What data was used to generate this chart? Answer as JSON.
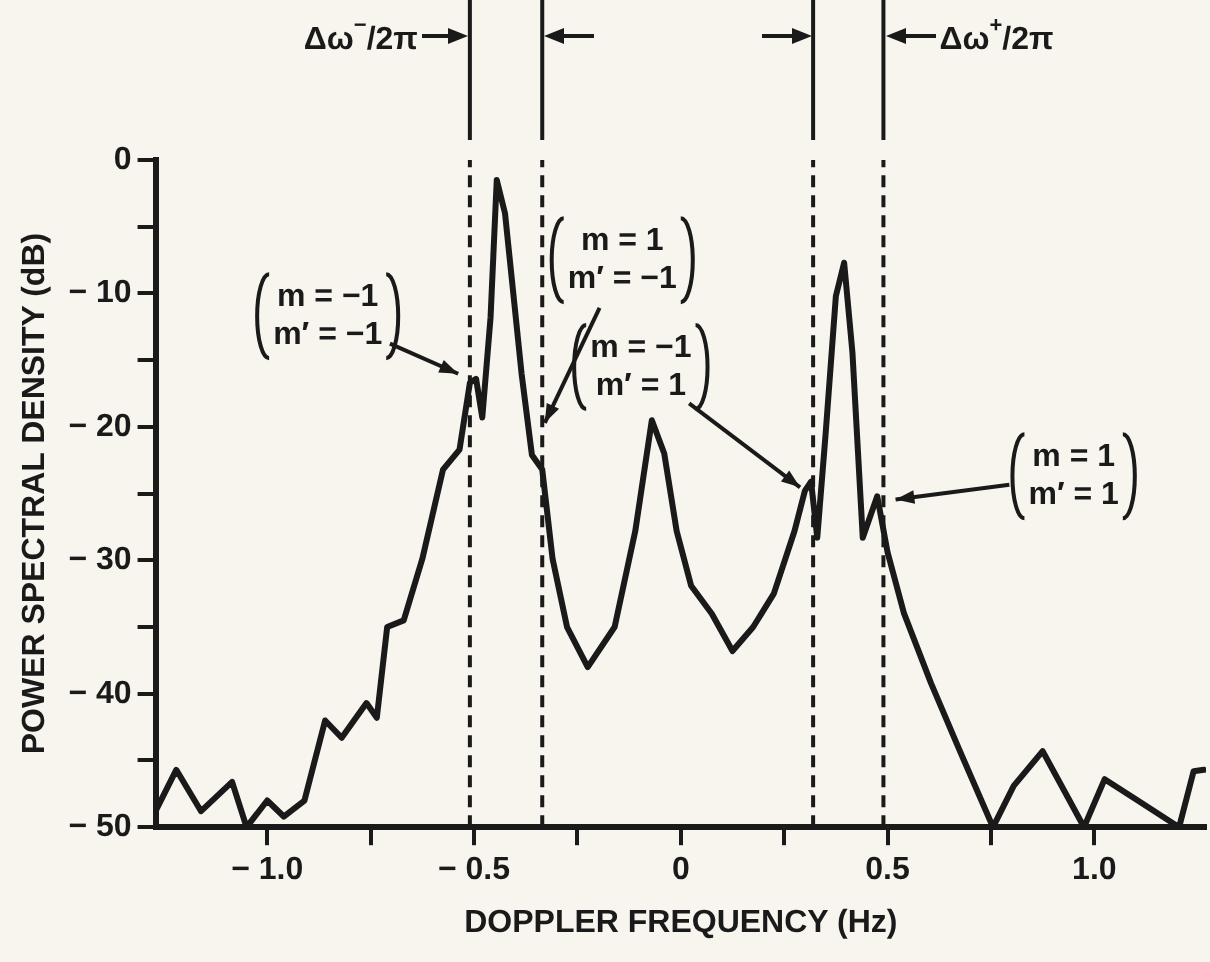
{
  "chart_data": {
    "type": "line",
    "xlabel": "DOPPLER FREQUENCY (Hz)",
    "ylabel": "POWER SPECTRAL DENSITY (dB)",
    "xlim": [
      -1.27,
      1.27
    ],
    "ylim": [
      -50,
      0
    ],
    "xticks": [
      {
        "value": -1,
        "label": "− 1.0"
      },
      {
        "value": -0.75,
        "label": null
      },
      {
        "value": -0.5,
        "label": "− 0.5"
      },
      {
        "value": -0.25,
        "label": null
      },
      0,
      {
        "value": 0.25,
        "label": null
      },
      0.5,
      {
        "value": 0.75,
        "label": null
      },
      {
        "value": 1,
        "label": "1.0"
      }
    ],
    "yticks": [
      {
        "value": -50,
        "label": "− 50"
      },
      {
        "value": -45,
        "label": null
      },
      {
        "value": -40,
        "label": "− 40"
      },
      {
        "value": -35,
        "label": null
      },
      {
        "value": -30,
        "label": "− 30"
      },
      {
        "value": -25,
        "label": null
      },
      {
        "value": -20,
        "label": "− 20"
      },
      {
        "value": -15,
        "label": null
      },
      {
        "value": -10,
        "label": "− 10"
      },
      {
        "value": -5,
        "label": null
      },
      0
    ],
    "grid": false,
    "legend": false,
    "marker": "none",
    "line_style": "solid",
    "series": [
      {
        "color": "#1a1a1a",
        "x": [
          -1.27,
          -1.22,
          -1.16,
          -1.085,
          -1.05,
          -1.0,
          -0.96,
          -0.91,
          -0.86,
          -0.82,
          -0.76,
          -0.735,
          -0.71,
          -0.67,
          -0.625,
          -0.575,
          -0.535,
          -0.51,
          -0.495,
          -0.48,
          -0.46,
          -0.445,
          -0.425,
          -0.385,
          -0.36,
          -0.335,
          -0.31,
          -0.275,
          -0.225,
          -0.16,
          -0.11,
          -0.07,
          -0.04,
          -0.01,
          0.025,
          0.075,
          0.125,
          0.175,
          0.225,
          0.275,
          0.3,
          0.315,
          0.33,
          0.35,
          0.375,
          0.395,
          0.415,
          0.44,
          0.475,
          0.5,
          0.54,
          0.605,
          0.675,
          0.755,
          0.805,
          0.875,
          0.94,
          0.975,
          1.025,
          1.105,
          1.205,
          1.24,
          1.265
        ],
        "values": [
          -48.8,
          -45.7,
          -48.8,
          -46.6,
          -50,
          -48,
          -49.2,
          -48,
          -42,
          -43.3,
          -40.7,
          -41.8,
          -35,
          -34.5,
          -29.9,
          -23.2,
          -21.7,
          -16.7,
          -16.4,
          -19.3,
          -11.8,
          -1.5,
          -4,
          -16,
          -22.1,
          -23.2,
          -29.9,
          -35,
          -38,
          -35,
          -27.8,
          -19.5,
          -22,
          -27.8,
          -31.9,
          -34,
          -36.8,
          -35,
          -32.5,
          -27.8,
          -24.8,
          -24.1,
          -28.3,
          -20.6,
          -10.2,
          -7.7,
          -14.4,
          -28.3,
          -25.2,
          -29.4,
          -34,
          -39.2,
          -44.3,
          -50,
          -46.9,
          -44.3,
          -48,
          -50,
          -46.4,
          -48,
          -50,
          -45.8,
          -45.7
        ]
      }
    ],
    "ref_lines": [
      {
        "axis": "x",
        "value": -0.51,
        "line_style": "dashed"
      },
      {
        "axis": "x",
        "value": -0.335,
        "line_style": "dashed"
      },
      {
        "axis": "x",
        "value": 0.32,
        "line_style": "dashed"
      },
      {
        "axis": "x",
        "value": 0.49,
        "line_style": "dashed"
      }
    ],
    "annotations": [
      "Δω$^{−}$/2π",
      "Δω$^{+}$/2π",
      {
        "text": "m = −1\nm′ = −1",
        "x": -0.525,
        "y": -16.2
      },
      {
        "text": "m = 1\nm′ = −1",
        "x": -0.335,
        "y": -20.1
      },
      {
        "text": "m = −1\nm′ = 1",
        "x": 0.3,
        "y": -24.8
      },
      {
        "text": "m = 1\nm′ = 1",
        "x": 0.505,
        "y": -25.5
      }
    ]
  }
}
